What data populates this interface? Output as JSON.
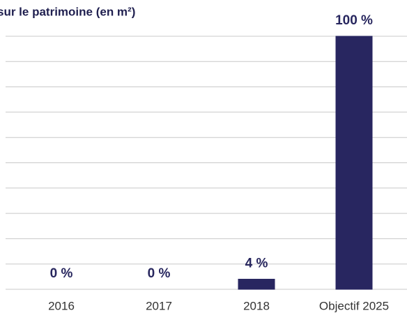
{
  "chart_data": {
    "type": "bar",
    "title": "sur le patrimoine (en m²)",
    "categories": [
      "2016",
      "2017",
      "2018",
      "Objectif 2025"
    ],
    "values": [
      0,
      0,
      4,
      100
    ],
    "value_labels": [
      "0 %",
      "0 %",
      "4 %",
      "100 %"
    ],
    "color": "#282660",
    "ylim": [
      0,
      100
    ],
    "yticks": [
      0,
      10,
      20,
      30,
      40,
      50,
      60,
      70,
      80,
      90,
      100
    ],
    "grid": true
  }
}
